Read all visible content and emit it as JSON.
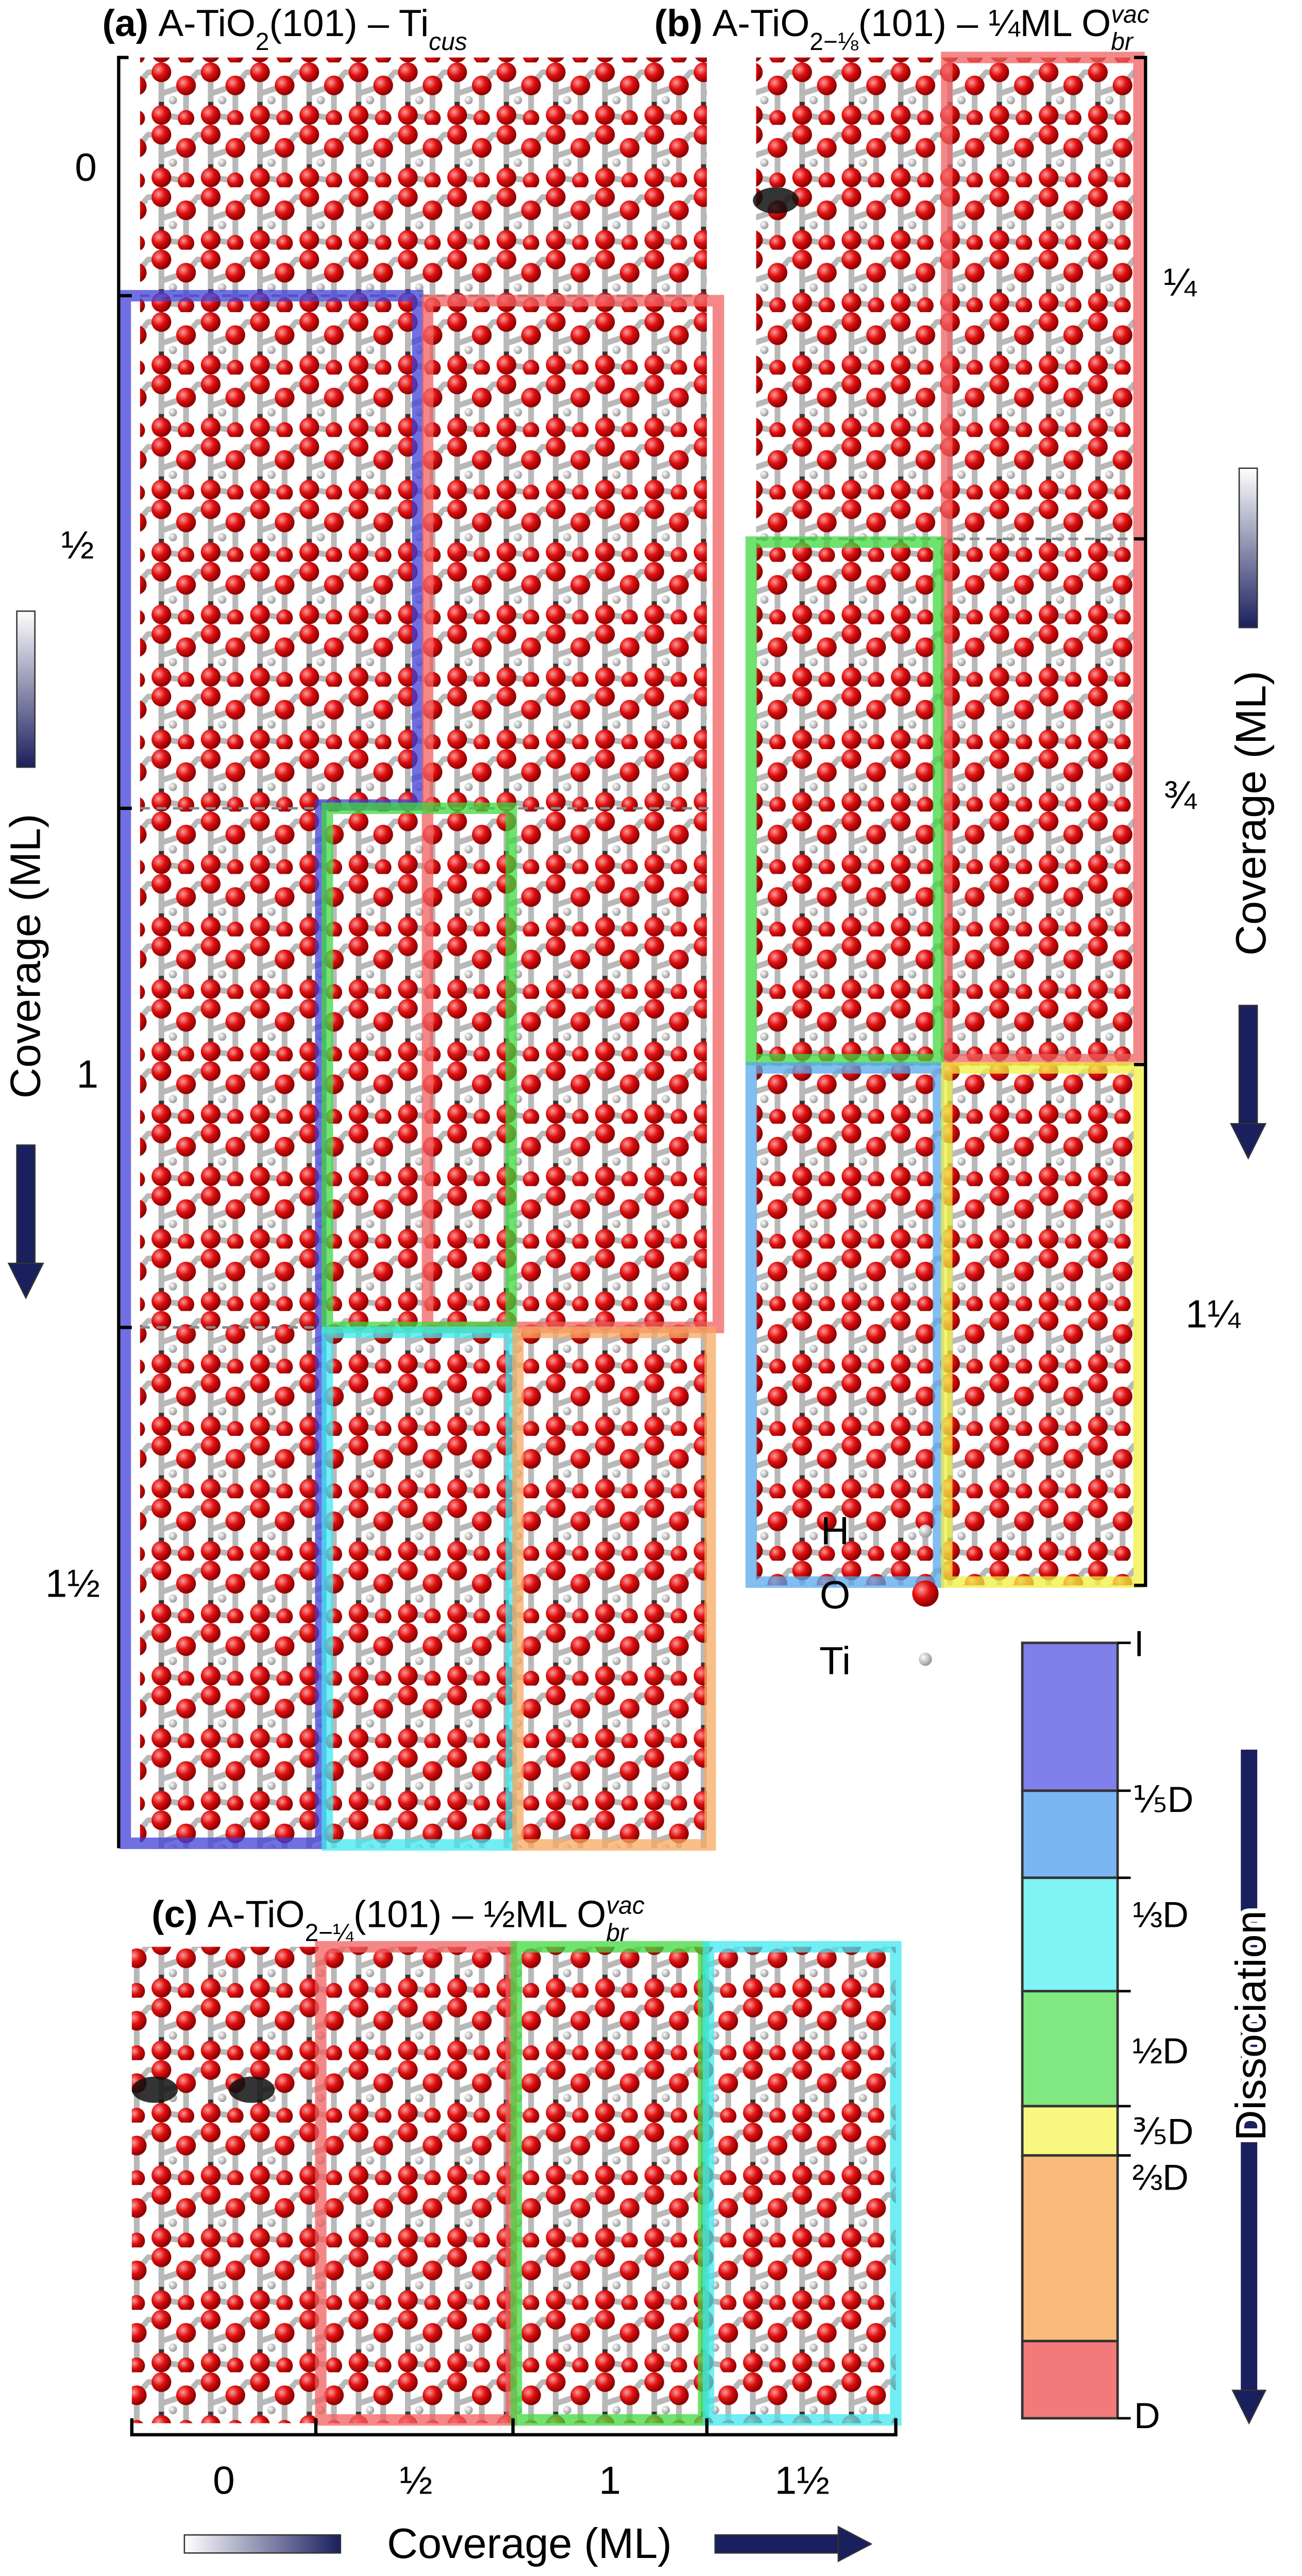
{
  "panels": [
    {
      "label": "(a)",
      "title": [
        {
          "text": "A-TiO"
        },
        {
          "text": "2",
          "pos": "sub"
        },
        {
          "text": "(101) – Ti"
        },
        {
          "text": "cus",
          "pos": "sub",
          "style": "italic"
        }
      ],
      "coverage_labels": [
        "0",
        "½",
        "1",
        "1½"
      ]
    },
    {
      "label": "(b)",
      "title": [
        {
          "text": "A-TiO"
        },
        {
          "text": "2−⅛",
          "pos": "sub"
        },
        {
          "text": "(101) – ¼ML O"
        },
        {
          "text": "vac",
          "pos": "sup",
          "style": "italic"
        },
        {
          "text": "br",
          "pos": "sub",
          "style": "italic"
        }
      ],
      "coverage_labels": [
        "¼",
        "¾",
        "1¼"
      ]
    },
    {
      "label": "(c)",
      "title": [
        {
          "text": "A-TiO"
        },
        {
          "text": "2−¼",
          "pos": "sub"
        },
        {
          "text": "(101) – ½ML O"
        },
        {
          "text": "vac",
          "pos": "sup",
          "style": "italic"
        },
        {
          "text": "br",
          "pos": "sub",
          "style": "italic"
        }
      ],
      "coverage_labels": [
        "0",
        "½",
        "1",
        "1½"
      ]
    }
  ],
  "axis_label": "Coverage (ML)",
  "legend": [
    "H",
    "O",
    "Ti"
  ],
  "dissociation": {
    "title": "Dissociation",
    "levels": [
      "I",
      "⅕D",
      "⅓D",
      "½D",
      "⅗D",
      "⅔D",
      "D"
    ]
  }
}
